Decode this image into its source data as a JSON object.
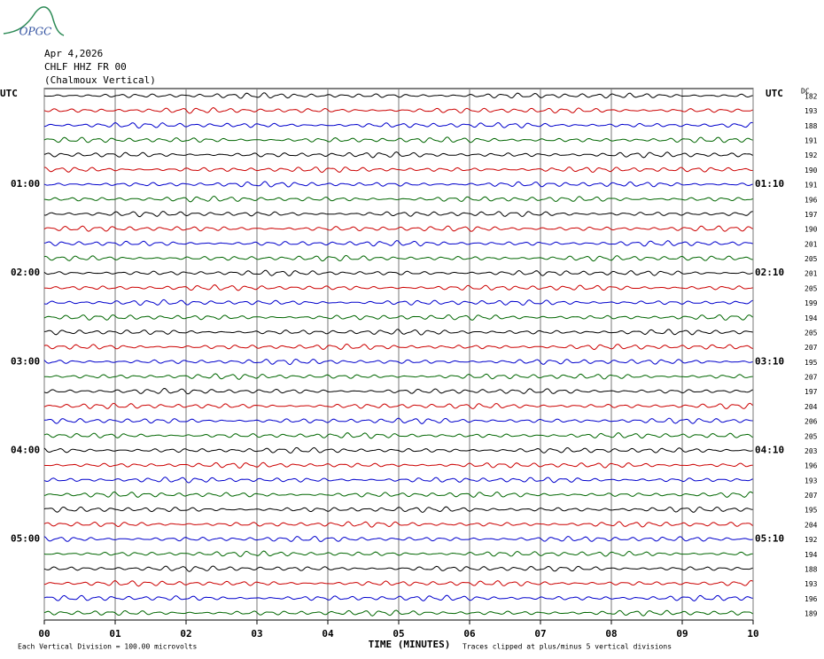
{
  "logo": "OPGC",
  "chart_data": {
    "type": "helicorder",
    "title": "Apr 4,2026",
    "station": "CHLF HHZ FR 00",
    "component": "(Chalmoux Vertical)",
    "left_header": "UTC",
    "right_header": "UTC",
    "dc_header": "DC",
    "x_label": "TIME (MINUTES)",
    "scale_note": "Each Vertical Division =  100.00 microvolts",
    "clip_note": "Traces clipped at plus/minus 5 vertical divisions",
    "xlim": [
      0,
      10
    ],
    "xticks": [
      {
        "value": 0,
        "label": "00"
      },
      {
        "value": 1,
        "label": "01"
      },
      {
        "value": 2,
        "label": "02"
      },
      {
        "value": 3,
        "label": "03"
      },
      {
        "value": 4,
        "label": "04"
      },
      {
        "value": 5,
        "label": "05"
      },
      {
        "value": 6,
        "label": "06"
      },
      {
        "value": 7,
        "label": "07"
      },
      {
        "value": 8,
        "label": "08"
      },
      {
        "value": 9,
        "label": "09"
      },
      {
        "value": 10,
        "label": "10"
      }
    ],
    "grid": true,
    "colors": [
      "#000000",
      "#cc0000",
      "#0000cc",
      "#006600"
    ],
    "left_labels": [
      null,
      null,
      null,
      null,
      null,
      null,
      "01:00",
      null,
      null,
      null,
      null,
      null,
      "02:00",
      null,
      null,
      null,
      null,
      null,
      "03:00",
      null,
      null,
      null,
      null,
      null,
      "04:00",
      null,
      null,
      null,
      null,
      null,
      "05:00",
      null,
      null,
      null,
      null,
      null
    ],
    "right_labels": [
      null,
      null,
      null,
      null,
      null,
      null,
      "01:10",
      null,
      null,
      null,
      null,
      null,
      "02:10",
      null,
      null,
      null,
      null,
      null,
      "03:10",
      null,
      null,
      null,
      null,
      null,
      "04:10",
      null,
      null,
      null,
      null,
      null,
      "05:10",
      null,
      null,
      null,
      null,
      null
    ],
    "dc_values": [
      182,
      193,
      188,
      191,
      192,
      190,
      191,
      196,
      197,
      190,
      201,
      205,
      201,
      205,
      199,
      194,
      205,
      207,
      195,
      207,
      197,
      204,
      206,
      205,
      203,
      196,
      193,
      207,
      195,
      204,
      192,
      194,
      188,
      193,
      196,
      189
    ]
  }
}
